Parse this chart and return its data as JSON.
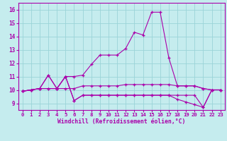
{
  "xlabel": "Windchill (Refroidissement éolien,°C)",
  "x_ticks": [
    0,
    1,
    2,
    3,
    4,
    5,
    6,
    7,
    8,
    9,
    10,
    11,
    12,
    13,
    14,
    15,
    16,
    17,
    18,
    19,
    20,
    21,
    22,
    23
  ],
  "ylim": [
    8.5,
    16.5
  ],
  "xlim": [
    -0.5,
    23.5
  ],
  "yticks": [
    9,
    10,
    11,
    12,
    13,
    14,
    15,
    16
  ],
  "background_color": "#c5ecee",
  "line_color": "#aa00aa",
  "grid_color": "#9ad4d8",
  "series": [
    [
      9.9,
      10.0,
      10.1,
      11.1,
      10.1,
      11.0,
      11.0,
      11.1,
      11.9,
      12.6,
      12.6,
      12.6,
      13.1,
      14.3,
      14.1,
      15.8,
      15.8,
      12.4,
      10.3,
      10.3,
      10.3,
      10.1,
      10.0,
      10.0
    ],
    [
      9.9,
      10.0,
      10.1,
      10.1,
      10.1,
      10.1,
      10.1,
      10.3,
      10.3,
      10.3,
      10.3,
      10.3,
      10.4,
      10.4,
      10.4,
      10.4,
      10.4,
      10.4,
      10.3,
      10.3,
      10.3,
      10.1,
      10.0,
      10.0
    ],
    [
      9.9,
      10.0,
      10.1,
      11.1,
      10.1,
      11.0,
      9.2,
      9.6,
      9.6,
      9.6,
      9.6,
      9.6,
      9.6,
      9.6,
      9.6,
      9.6,
      9.6,
      9.6,
      9.6,
      9.6,
      9.6,
      8.7,
      10.0,
      10.0
    ],
    [
      9.9,
      10.0,
      10.1,
      10.1,
      10.1,
      11.0,
      9.2,
      9.6,
      9.6,
      9.6,
      9.6,
      9.6,
      9.6,
      9.6,
      9.6,
      9.6,
      9.6,
      9.6,
      9.3,
      9.1,
      8.9,
      8.7,
      10.0,
      10.0
    ]
  ]
}
